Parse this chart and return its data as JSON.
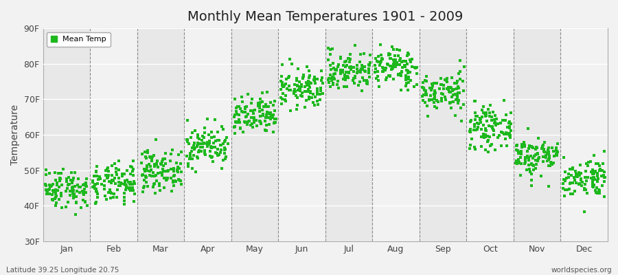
{
  "title": "Monthly Mean Temperatures 1901 - 2009",
  "ylabel": "Temperature",
  "ytick_labels": [
    "30F",
    "40F",
    "50F",
    "60F",
    "70F",
    "80F",
    "90F"
  ],
  "ytick_values": [
    30,
    40,
    50,
    60,
    70,
    80,
    90
  ],
  "ylim": [
    30,
    90
  ],
  "month_labels": [
    "Jan",
    "Feb",
    "Mar",
    "Apr",
    "May",
    "Jun",
    "Jul",
    "Aug",
    "Sep",
    "Oct",
    "Nov",
    "Dec"
  ],
  "legend_label": "Mean Temp",
  "dot_color": "#1db81d",
  "background_color": "#f2f2f2",
  "band_color_odd": "#e8e8e8",
  "band_color_even": "#f2f2f2",
  "footer_left": "Latitude 39.25 Longitude 20.75",
  "footer_right": "worldspecies.org",
  "mean_temps_F": [
    45,
    46,
    50,
    57,
    65,
    73,
    78,
    79,
    72,
    62,
    54,
    48
  ],
  "std_temps_F": [
    2.8,
    2.8,
    2.8,
    2.8,
    2.8,
    2.8,
    2.8,
    2.8,
    2.8,
    2.8,
    2.8,
    2.8
  ],
  "n_years": 109,
  "seed": 42
}
